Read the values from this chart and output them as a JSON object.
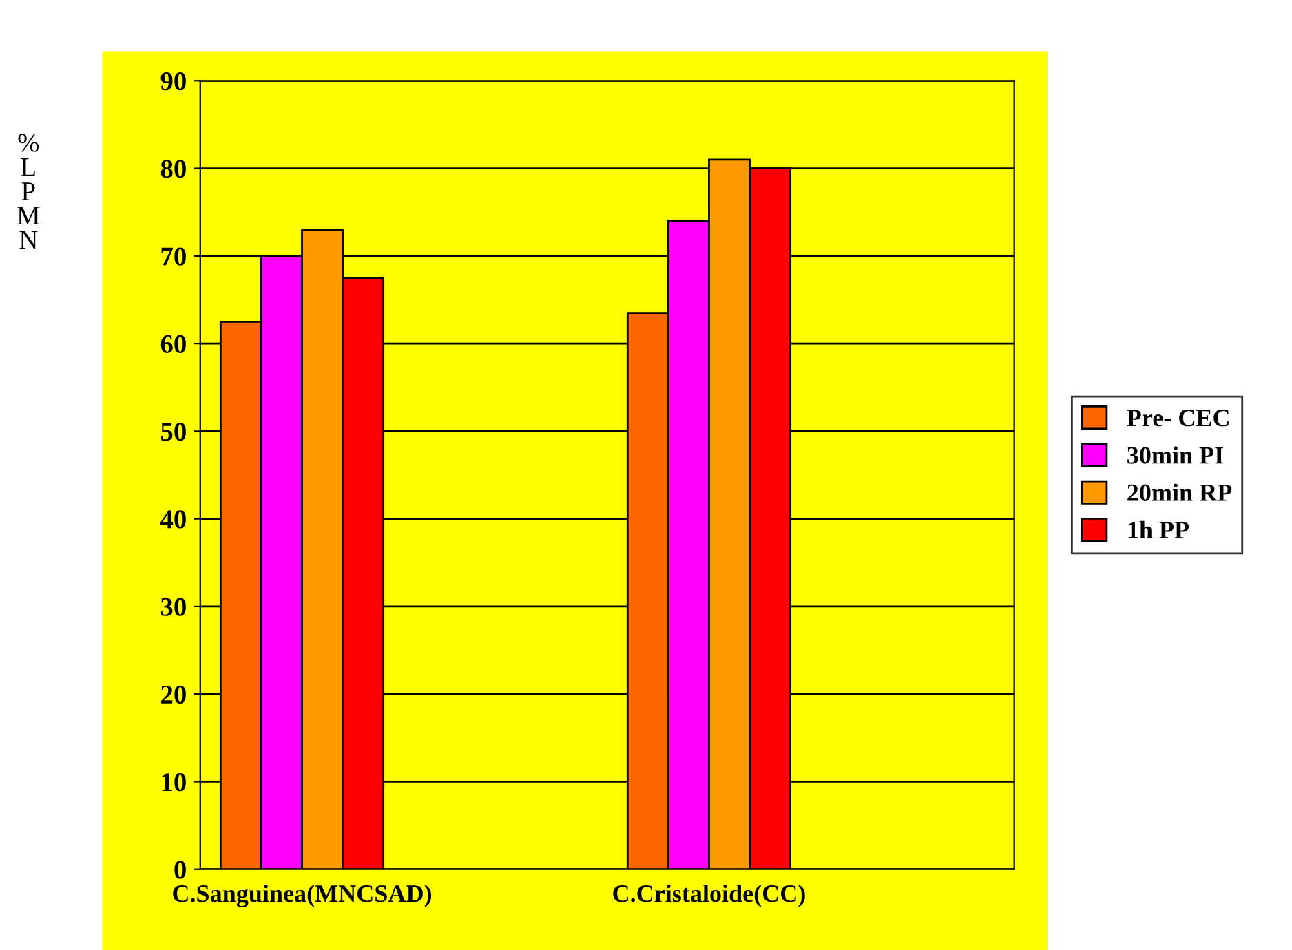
{
  "chart_data": {
    "type": "bar",
    "ylabel": "%\nL\nP\nM\nN",
    "categories": [
      "C.Sanguinea(MNCSAD)",
      "C.Cristaloide(CC)"
    ],
    "series": [
      {
        "name": "Pre- CEC",
        "color": "#ff6600",
        "values": [
          62.5,
          63.5
        ]
      },
      {
        "name": "30min PI",
        "color": "#ff00ff",
        "values": [
          70,
          74
        ]
      },
      {
        "name": "20min RP",
        "color": "#ff9900",
        "values": [
          73,
          81
        ]
      },
      {
        "name": "1h PP",
        "color": "#ff0000",
        "values": [
          67.5,
          80
        ]
      }
    ],
    "ylim": [
      0,
      90
    ],
    "yticks": [
      0,
      10,
      20,
      30,
      40,
      50,
      60,
      70,
      80,
      90
    ],
    "grid": "y",
    "legend": "right"
  }
}
